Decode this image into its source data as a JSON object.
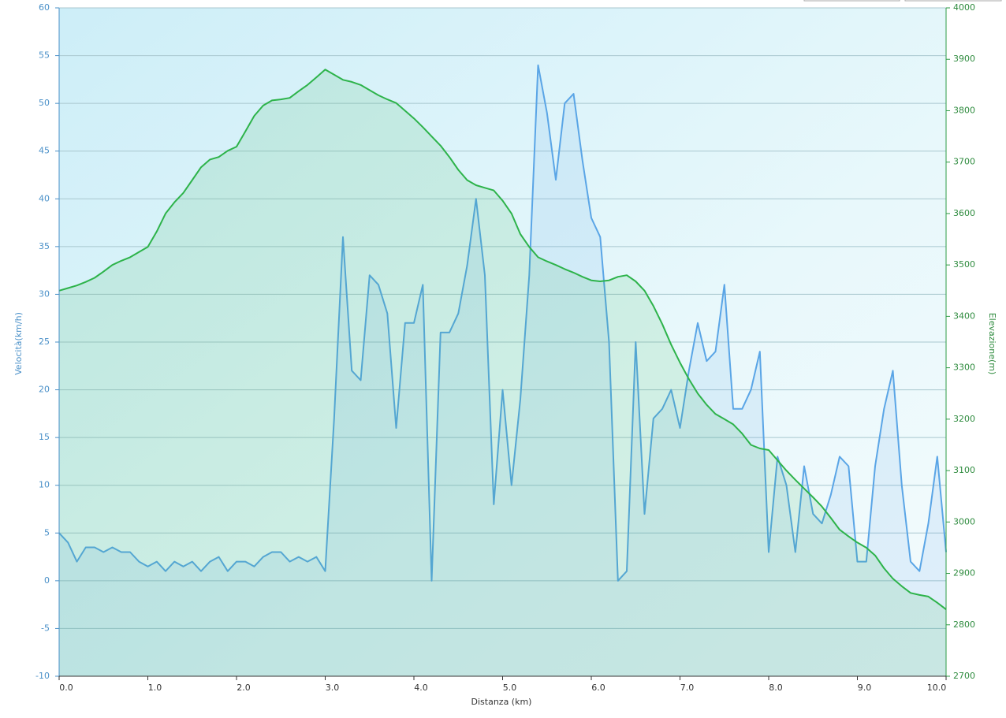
{
  "chart_data": {
    "type": "line",
    "xlabel": "Distanza  (km)",
    "ylabel": "Velocità(km/h)",
    "y2label": "Elevazione(m)",
    "x": [
      0,
      0.1,
      0.2,
      0.3,
      0.4,
      0.5,
      0.6,
      0.7,
      0.8,
      0.9,
      1,
      1.1,
      1.2,
      1.3,
      1.4,
      1.5,
      1.6,
      1.7,
      1.8,
      1.9,
      2,
      2.1,
      2.2,
      2.3,
      2.4,
      2.5,
      2.6,
      2.7,
      2.8,
      2.9,
      3,
      3.1,
      3.2,
      3.3,
      3.4,
      3.5,
      3.6,
      3.7,
      3.8,
      3.9,
      4,
      4.1,
      4.2,
      4.3,
      4.4,
      4.5,
      4.6,
      4.7,
      4.8,
      4.9,
      5,
      5.1,
      5.2,
      5.3,
      5.4,
      5.5,
      5.6,
      5.7,
      5.8,
      5.9,
      6,
      6.1,
      6.2,
      6.3,
      6.4,
      6.5,
      6.6,
      6.7,
      6.8,
      6.9,
      7,
      7.1,
      7.2,
      7.3,
      7.4,
      7.5,
      7.6,
      7.7,
      7.8,
      7.9,
      8,
      8.1,
      8.2,
      8.3,
      8.4,
      8.5,
      8.6,
      8.7,
      8.8,
      8.9,
      9,
      9.1,
      9.2,
      9.3,
      9.4,
      9.5,
      9.6,
      9.7,
      9.8,
      9.9,
      10
    ],
    "series": [
      {
        "name": "Velocità",
        "color": "#5aa5e6",
        "values": [
          5,
          4,
          2,
          3.5,
          3.5,
          3,
          3.5,
          3,
          3,
          2,
          1.5,
          2,
          1,
          2,
          1.5,
          2,
          1,
          2,
          2.5,
          1,
          2,
          2,
          1.5,
          2.5,
          3,
          3,
          2,
          2.5,
          2,
          2.5,
          1,
          17,
          36,
          22,
          21,
          32,
          31,
          28,
          16,
          27,
          27,
          31,
          0,
          26,
          26,
          28,
          33,
          40,
          32,
          8,
          20,
          10,
          19,
          32,
          54,
          49,
          42,
          50,
          51,
          44,
          38,
          36,
          25,
          0,
          1,
          25,
          7,
          17,
          18,
          20,
          16,
          22,
          27,
          23,
          24,
          31,
          18,
          18,
          20,
          24,
          3,
          13,
          10,
          3,
          12,
          7,
          6,
          9,
          13,
          12,
          2,
          2,
          12,
          18,
          22,
          10,
          2,
          1,
          6,
          13,
          3
        ]
      },
      {
        "name": "Elevazione",
        "color": "#2db34a",
        "axis": "y2",
        "values": [
          3450,
          3455,
          3460,
          3467,
          3475,
          3487,
          3500,
          3508,
          3515,
          3525,
          3535,
          3565,
          3600,
          3622,
          3640,
          3665,
          3690,
          3705,
          3710,
          3722,
          3730,
          3760,
          3790,
          3810,
          3820,
          3822,
          3825,
          3838,
          3850,
          3865,
          3880,
          3870,
          3860,
          3856,
          3850,
          3840,
          3830,
          3822,
          3815,
          3800,
          3785,
          3768,
          3750,
          3732,
          3710,
          3685,
          3665,
          3655,
          3650,
          3645,
          3625,
          3600,
          3560,
          3535,
          3515,
          3507,
          3500,
          3492,
          3485,
          3477,
          3470,
          3468,
          3470,
          3477,
          3480,
          3468,
          3450,
          3420,
          3385,
          3345,
          3310,
          3278,
          3250,
          3228,
          3210,
          3200,
          3190,
          3172,
          3150,
          3143,
          3140,
          3120,
          3100,
          3082,
          3065,
          3048,
          3030,
          3008,
          2985,
          2972,
          2960,
          2950,
          2935,
          2910,
          2890,
          2875,
          2862,
          2858,
          2855,
          2843,
          2830
        ]
      }
    ],
    "xlim": [
      0,
      10
    ],
    "xticks": [
      {
        "value": 0,
        "label": "0.0"
      },
      {
        "value": 1,
        "label": "1.0"
      },
      {
        "value": 2,
        "label": "2.0"
      },
      {
        "value": 3,
        "label": "3.0"
      },
      {
        "value": 4,
        "label": "4.0"
      },
      {
        "value": 5,
        "label": "5.0"
      },
      {
        "value": 6,
        "label": "6.0"
      },
      {
        "value": 7,
        "label": "7.0"
      },
      {
        "value": 8,
        "label": "8.0"
      },
      {
        "value": 9,
        "label": "9.0"
      },
      {
        "value": 10,
        "label": "10.0"
      }
    ],
    "ylim": [
      -10,
      60
    ],
    "yticks": [
      -10,
      -5,
      0,
      5,
      10,
      15,
      20,
      25,
      30,
      35,
      40,
      45,
      50,
      55,
      60
    ],
    "y2lim": [
      2700,
      4000
    ],
    "y2ticks": [
      2700,
      2800,
      2900,
      3000,
      3100,
      3200,
      3300,
      3400,
      3500,
      3600,
      3700,
      3800,
      3900,
      4000
    ],
    "grid": true
  }
}
